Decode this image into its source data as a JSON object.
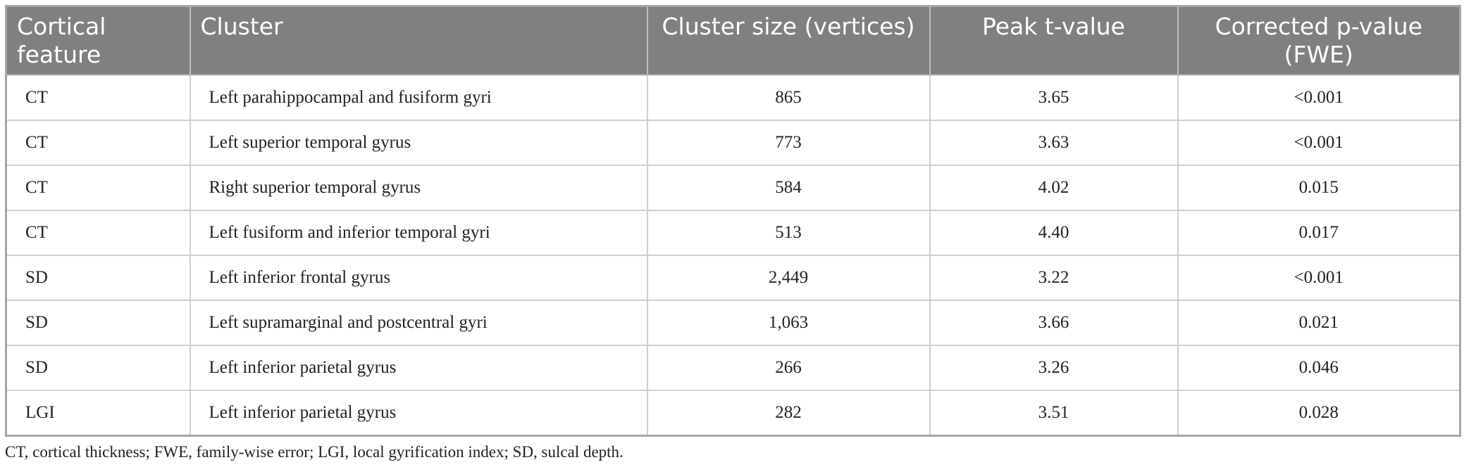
{
  "table": {
    "header": [
      "Cortical feature",
      "Cluster",
      "Cluster size (vertices)",
      "Peak t-value",
      "Corrected p-value (FWE)"
    ],
    "rows": [
      [
        "CT",
        "Left parahippocampal and fusiform gyri",
        "865",
        "3.65",
        "<0.001"
      ],
      [
        "CT",
        "Left superior temporal gyrus",
        "773",
        "3.63",
        "<0.001"
      ],
      [
        "CT",
        "Right superior temporal gyrus",
        "584",
        "4.02",
        "0.015"
      ],
      [
        "CT",
        "Left fusiform and inferior temporal gyri",
        "513",
        "4.40",
        "0.017"
      ],
      [
        "SD",
        "Left inferior frontal gyrus",
        "2,449",
        "3.22",
        "<0.001"
      ],
      [
        "SD",
        "Left supramarginal and postcentral gyri",
        "1,063",
        "3.66",
        "0.021"
      ],
      [
        "SD",
        "Left inferior parietal gyrus",
        "266",
        "3.26",
        "0.046"
      ],
      [
        "LGI",
        "Left inferior parietal gyrus",
        "282",
        "3.51",
        "0.028"
      ]
    ]
  },
  "footnote": "CT, cortical thickness; FWE, family-wise error; LGI, local gyrification index; SD, sulcal depth."
}
